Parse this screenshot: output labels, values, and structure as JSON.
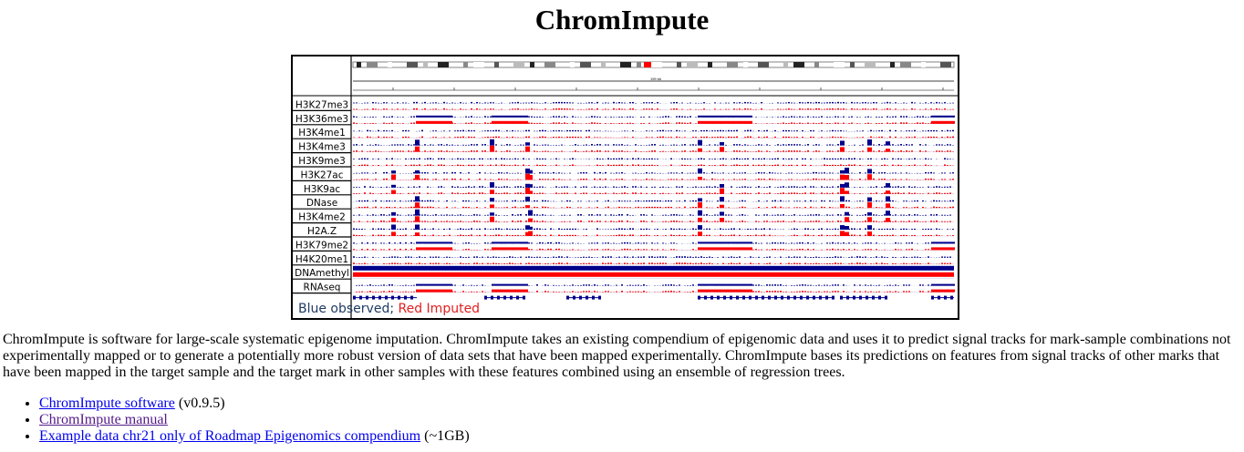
{
  "page": {
    "title": "ChromImpute"
  },
  "figure": {
    "tracks": [
      "H3K27me3",
      "H3K36me3",
      "H3K4me1",
      "H3K4me3",
      "H3K9me3",
      "H3K27ac",
      "H3K9ac",
      "DNase",
      "H3K4me2",
      "H2A.Z",
      "H3K79me2",
      "H4K20me1",
      "DNAmethyl",
      "RNAseq"
    ],
    "scale_label": "199 kb",
    "legend_observed": "Blue observed;",
    "legend_imputed": "Red Imputed",
    "colors": {
      "observed": "#00008b",
      "imputed": "#ff0000",
      "ideogram_highlight": "#ff0000"
    }
  },
  "intro": "ChromImpute is software for large-scale systematic epigenome imputation. ChromImpute takes an existing compendium of epigenomic data and uses it to predict signal tracks for mark-sample combinations not experimentally mapped or to generate a potentially more robust version of data sets that have been mapped experimentally. ChromImpute bases its predictions on features from signal tracks of other marks that have been mapped in the target sample and the target mark in other samples with these features combined using an ensemble of regression trees.",
  "links": [
    {
      "text": "ChromImpute software",
      "note": " (v0.9.5)"
    },
    {
      "text": "ChromImpute manual",
      "note": ""
    },
    {
      "text": "Example data chr21 only of Roadmap Epigenomics compendium",
      "note": " (~1GB)"
    }
  ]
}
